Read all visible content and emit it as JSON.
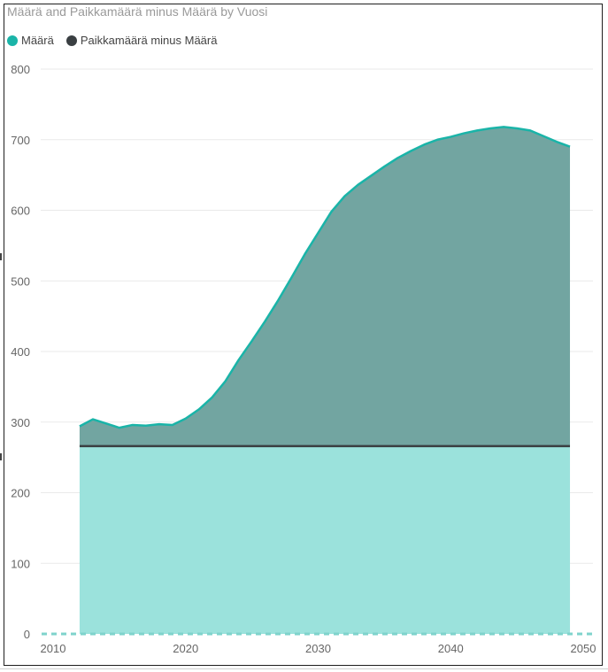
{
  "chart_data": {
    "type": "area",
    "title": "Määrä and Paikkamäärä minus Määrä by Vuosi",
    "xlabel": "",
    "ylabel": "",
    "xlim": [
      2010,
      2050
    ],
    "ylim": [
      0,
      800
    ],
    "x_ticks": [
      "2010",
      "2020",
      "2030",
      "2040",
      "2050"
    ],
    "y_ticks": [
      "0",
      "100",
      "200",
      "300",
      "400",
      "500",
      "600",
      "700",
      "800"
    ],
    "grid": true,
    "legend_position": "top-left",
    "colors": {
      "maara_fill": "#9be2dc",
      "maara_line": "#1ab4a8",
      "upper_fill": "#72a5a1",
      "paikka_line": "#3a3f42",
      "grid": "#eaeaea"
    },
    "series": [
      {
        "name": "Määrä",
        "x": [
          2012,
          2013,
          2014,
          2015,
          2016,
          2017,
          2018,
          2019,
          2020,
          2021,
          2022,
          2023,
          2024,
          2025,
          2026,
          2027,
          2028,
          2029,
          2030,
          2031,
          2032,
          2033,
          2034,
          2035,
          2036,
          2037,
          2038,
          2039,
          2040,
          2041,
          2042,
          2043,
          2044,
          2045,
          2046,
          2047,
          2048,
          2049
        ],
        "values": [
          294,
          304,
          298,
          292,
          296,
          295,
          297,
          296,
          305,
          318,
          335,
          358,
          388,
          415,
          443,
          473,
          505,
          538,
          568,
          598,
          620,
          636,
          649,
          662,
          674,
          684,
          693,
          700,
          704,
          709,
          713,
          716,
          718,
          716,
          713,
          705,
          697,
          690
        ]
      },
      {
        "name": "Paikkamäärä minus Määrä",
        "x": [
          2012,
          2049
        ],
        "values": [
          266,
          266
        ]
      }
    ]
  }
}
